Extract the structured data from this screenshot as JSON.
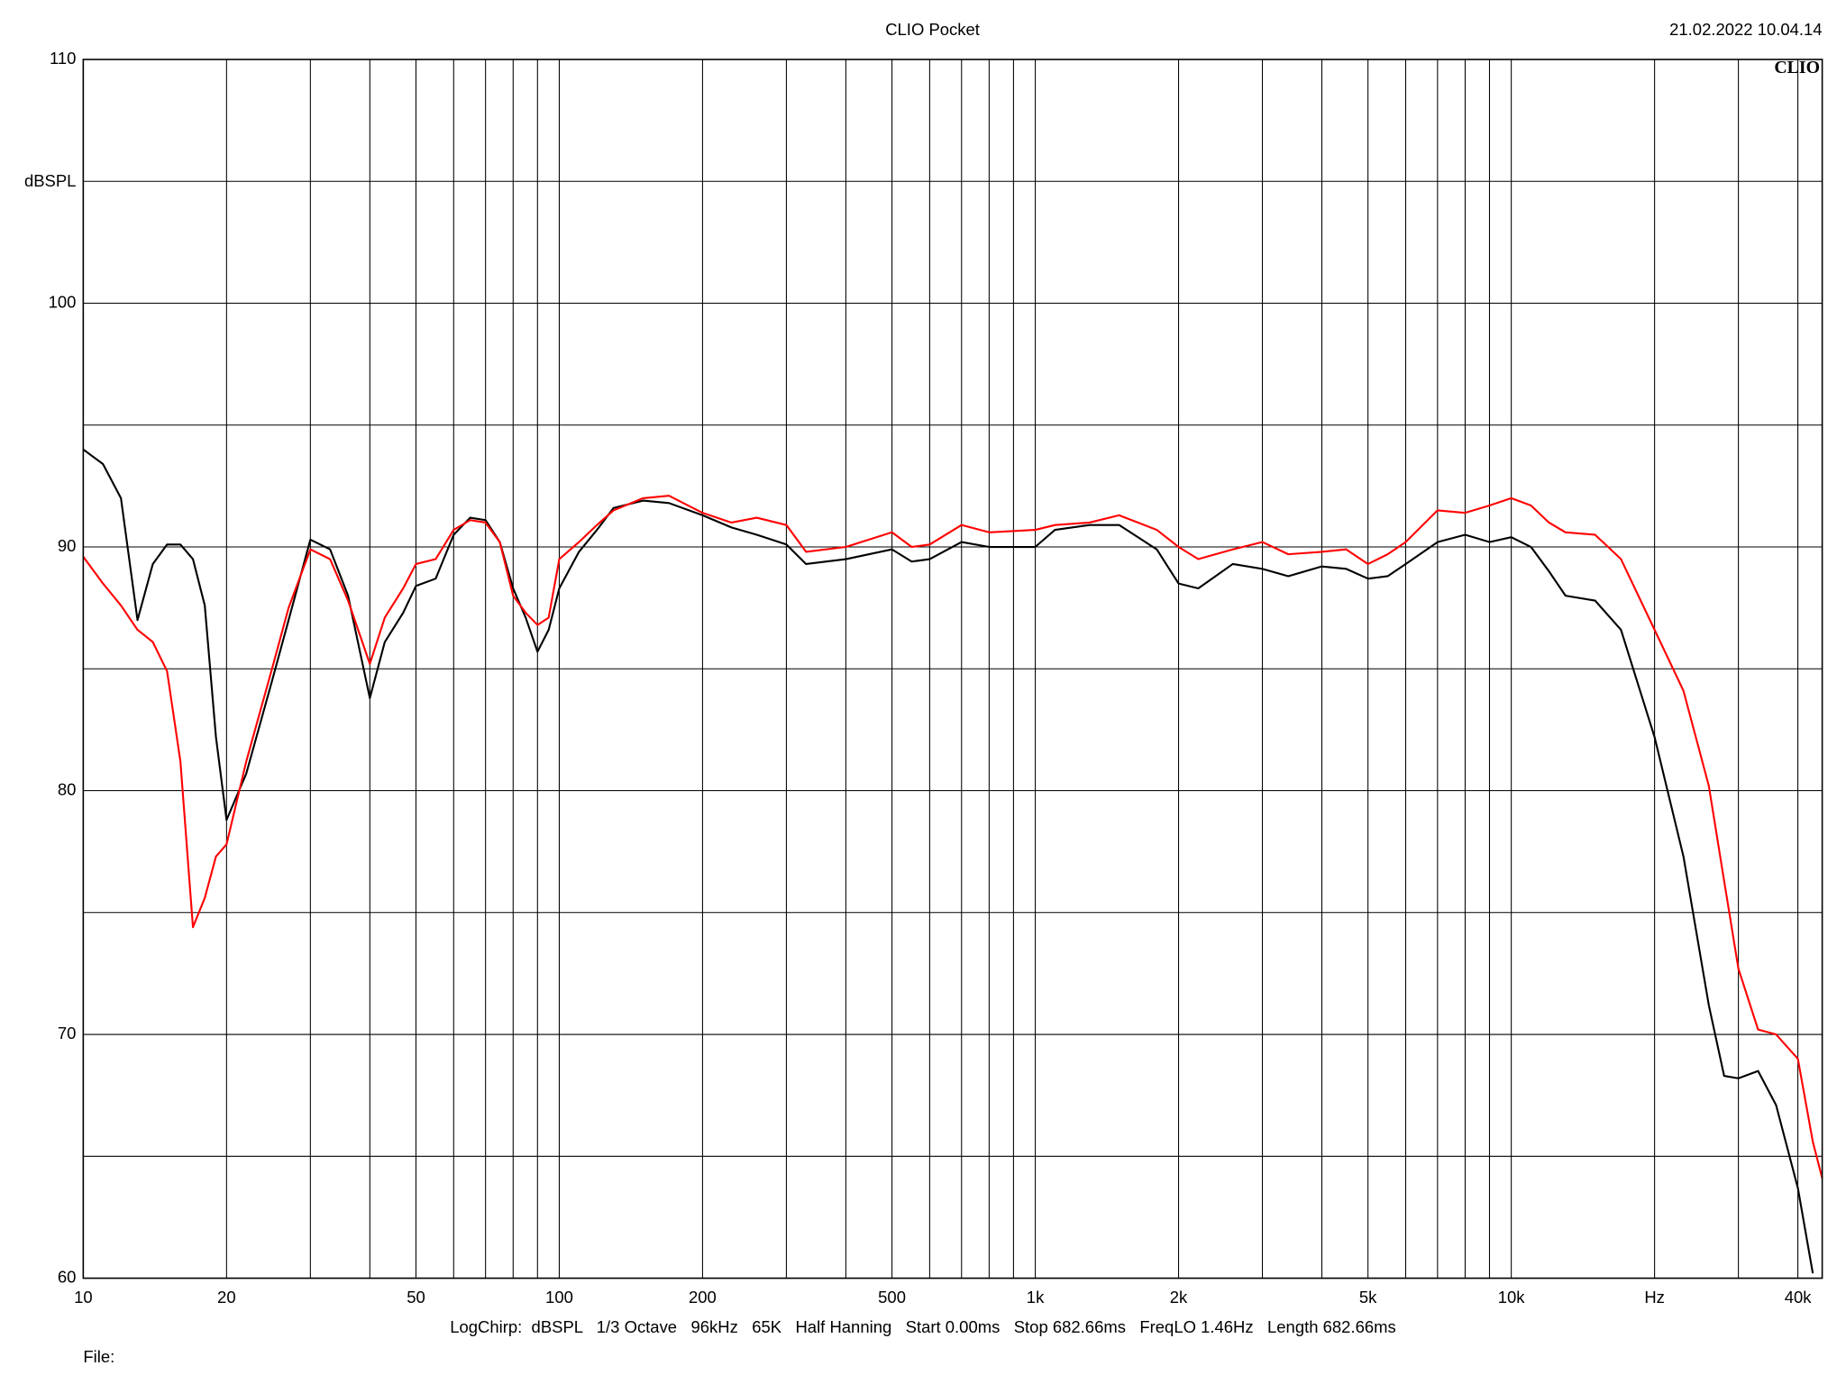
{
  "chart_data": {
    "type": "line",
    "title": "CLIO Pocket",
    "timestamp": "21.02.2022 10.04.14",
    "brand": "CLIO",
    "y_label": "dBSPL",
    "footer": "LogChirp:  dBSPL   1/3 Octave   96kHz   65K   Half Hanning   Start 0.00ms   Stop 682.66ms   FreqLO 1.46Hz   Length 682.66ms",
    "file_label": "File:",
    "x_log": true,
    "grid": true,
    "xlim": [
      10,
      45000
    ],
    "ylim": [
      60,
      110
    ],
    "xticks": [
      10,
      20,
      50,
      100,
      200,
      500,
      {
        "value": 1000,
        "label": "1k"
      },
      {
        "value": 2000,
        "label": "2k"
      },
      {
        "value": 5000,
        "label": "5k"
      },
      {
        "value": 10000,
        "label": "10k"
      },
      {
        "value": 20000,
        "label": "Hz"
      },
      {
        "value": 40000,
        "label": "40k"
      }
    ],
    "minor_xticks": [
      30,
      40,
      60,
      70,
      80,
      90,
      300,
      400,
      600,
      700,
      800,
      900,
      3000,
      4000,
      6000,
      7000,
      8000,
      9000,
      30000
    ],
    "yticks": [
      60,
      70,
      80,
      90,
      100,
      110
    ],
    "minor_yticks": [
      65,
      75,
      85,
      95,
      105
    ],
    "x": [
      10,
      11,
      12,
      13,
      14,
      15,
      16,
      17,
      18,
      19,
      20,
      22,
      25,
      27,
      30,
      33,
      36,
      40,
      43,
      47,
      50,
      55,
      60,
      65,
      70,
      75,
      80,
      85,
      90,
      95,
      100,
      110,
      120,
      130,
      150,
      170,
      200,
      230,
      260,
      300,
      330,
      400,
      500,
      550,
      600,
      700,
      800,
      1000,
      1100,
      1300,
      1500,
      1800,
      2000,
      2200,
      2600,
      3000,
      3400,
      4000,
      4500,
      5000,
      5500,
      6000,
      7000,
      8000,
      9000,
      10000,
      11000,
      12000,
      13000,
      15000,
      17000,
      20000,
      23000,
      26000,
      28000,
      30000,
      33000,
      36000,
      40000,
      43000,
      45000
    ],
    "series": [
      {
        "color": "#000000",
        "values": [
          94.0,
          93.4,
          92.0,
          87.0,
          89.3,
          90.1,
          90.1,
          89.5,
          87.6,
          82.2,
          78.8,
          80.7,
          84.6,
          87.0,
          90.3,
          89.9,
          88.0,
          83.8,
          86.1,
          87.3,
          88.4,
          88.7,
          90.5,
          91.2,
          91.1,
          90.2,
          88.3,
          87.1,
          85.7,
          86.6,
          88.3,
          89.8,
          90.7,
          91.6,
          91.9,
          91.8,
          91.3,
          90.8,
          90.5,
          90.1,
          89.3,
          89.5,
          89.9,
          89.4,
          89.5,
          90.2,
          90.0,
          90.0,
          90.7,
          90.9,
          90.9,
          89.9,
          88.5,
          88.3,
          89.3,
          89.1,
          88.8,
          89.2,
          89.1,
          88.7,
          88.8,
          89.3,
          90.2,
          90.5,
          90.2,
          90.4,
          90.0,
          89.0,
          88.0,
          87.8,
          86.6,
          82.2,
          77.3,
          71.2,
          68.3,
          68.2,
          68.5,
          67.1,
          63.7,
          60.2,
          null
        ]
      },
      {
        "color": "#ff0000",
        "values": [
          89.6,
          88.5,
          87.6,
          86.6,
          86.1,
          84.9,
          81.2,
          74.4,
          75.6,
          77.3,
          77.8,
          81.2,
          85.1,
          87.5,
          89.9,
          89.5,
          87.8,
          85.2,
          87.1,
          88.3,
          89.3,
          89.5,
          90.7,
          91.1,
          91.0,
          90.2,
          88.0,
          87.3,
          86.8,
          87.1,
          89.5,
          90.2,
          90.9,
          91.5,
          92.0,
          92.1,
          91.4,
          91.0,
          91.2,
          90.9,
          89.8,
          90.0,
          90.6,
          90.0,
          90.1,
          90.9,
          90.6,
          90.7,
          90.9,
          91.0,
          91.3,
          90.7,
          90.0,
          89.5,
          89.9,
          90.2,
          89.7,
          89.8,
          89.9,
          89.3,
          89.7,
          90.2,
          91.5,
          91.4,
          91.7,
          92.0,
          91.7,
          91.0,
          90.6,
          90.5,
          89.5,
          86.6,
          84.1,
          80.2,
          76.3,
          72.7,
          70.2,
          70.0,
          69.0,
          65.6,
          64.1
        ]
      }
    ]
  }
}
